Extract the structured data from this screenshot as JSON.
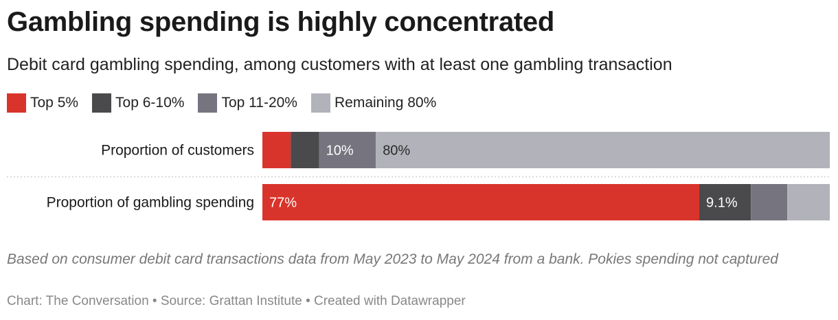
{
  "title": "Gambling spending is highly concentrated",
  "subtitle": "Debit card gambling spending, among customers with at least one gambling transaction",
  "colors": {
    "top5": "#d9342b",
    "top6_10": "#4a4a4c",
    "top11_20": "#76757f",
    "remaining80": "#b2b2ba"
  },
  "legend": [
    {
      "label": "Top 5%",
      "color": "#d9342b"
    },
    {
      "label": "Top 6-10%",
      "color": "#4a4a4c"
    },
    {
      "label": "Top 11-20%",
      "color": "#76757f"
    },
    {
      "label": "Remaining 80%",
      "color": "#b2b2ba"
    }
  ],
  "chart_data": {
    "type": "bar",
    "orientation": "horizontal",
    "stacked": true,
    "categories": [
      "Proportion of customers",
      "Proportion of gambling spending"
    ],
    "series": [
      {
        "name": "Top 5%",
        "values": [
          5,
          77
        ],
        "color": "#d9342b"
      },
      {
        "name": "Top 6-10%",
        "values": [
          5,
          9.1
        ],
        "color": "#4a4a4c"
      },
      {
        "name": "Top 11-20%",
        "values": [
          10,
          6.4
        ],
        "color": "#76757f"
      },
      {
        "name": "Remaining 80%",
        "values": [
          80,
          7.5
        ],
        "color": "#b2b2ba"
      }
    ],
    "data_labels": [
      [
        "",
        "",
        "10%",
        "80%"
      ],
      [
        "77%",
        "9.1%",
        "",
        ""
      ]
    ],
    "xlim": [
      0,
      100
    ],
    "legend_position": "top-left",
    "grid": false
  },
  "notes": "Based on consumer debit card transactions data from May 2023 to May 2024 from a bank. Pokies spending not captured",
  "footer": "Chart: The Conversation • Source: Grattan Institute • Created with Datawrapper"
}
